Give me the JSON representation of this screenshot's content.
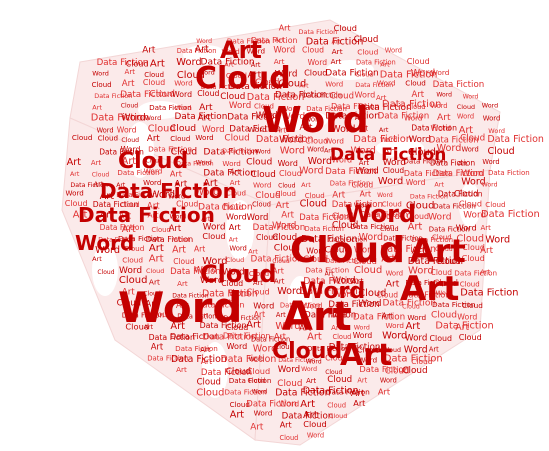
{
  "palette": {
    "background": "#ffffff",
    "word_dark": "#c40000",
    "word_light": "#e03030",
    "shape_tint": "#fbeaea"
  },
  "shape": "cube-dice-silhouette",
  "vocabulary": [
    "Word",
    "Cloud",
    "Art",
    "Data Fiction"
  ],
  "featured_words": [
    {
      "id": "cloud-top",
      "text": "Cloud"
    },
    {
      "id": "word-top",
      "text": "Word"
    },
    {
      "id": "art-top",
      "text": "Art"
    },
    {
      "id": "data-fiction-1",
      "text": "Data Fiction"
    },
    {
      "id": "data-fiction-2",
      "text": "Data Fiction"
    },
    {
      "id": "data-fiction-3",
      "text": "Data Fiction"
    },
    {
      "id": "word-left",
      "text": "Word"
    },
    {
      "id": "cloud-left",
      "text": "Cloud"
    },
    {
      "id": "word-big",
      "text": "Word"
    },
    {
      "id": "cloud-center",
      "text": "Cloud"
    },
    {
      "id": "art-right",
      "text": "Art"
    },
    {
      "id": "art-right-2",
      "text": "Art"
    },
    {
      "id": "art-center",
      "text": "Art"
    },
    {
      "id": "word-center",
      "text": "Word"
    },
    {
      "id": "art-bottom",
      "text": "Art"
    },
    {
      "id": "cloud-bottom",
      "text": "Cloud"
    },
    {
      "id": "word-right",
      "text": "Word"
    },
    {
      "id": "cloud-left-2",
      "text": "Cloud"
    }
  ]
}
